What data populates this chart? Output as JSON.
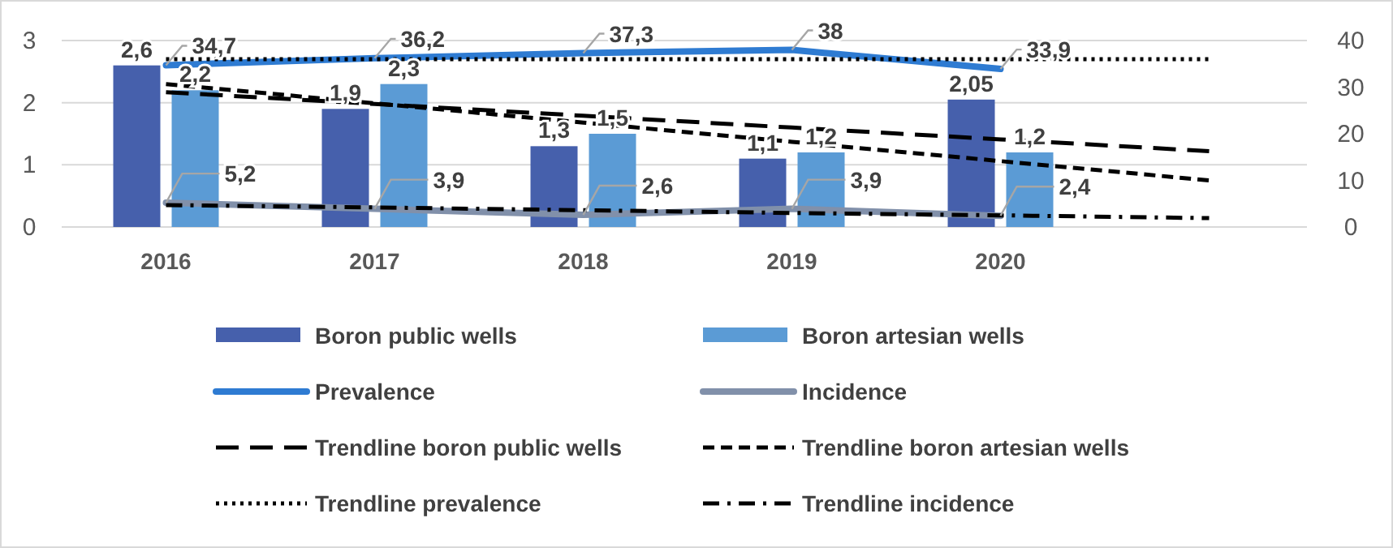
{
  "chart_data": {
    "type": "bar",
    "categories": [
      "2016",
      "2017",
      "2018",
      "2019",
      "2020",
      null
    ],
    "ylim": [
      0,
      3
    ],
    "yticks": [
      0,
      1,
      2,
      3
    ],
    "y2lim": [
      0,
      40
    ],
    "y2ticks": [
      0,
      10,
      20,
      30,
      40
    ],
    "grid": "y",
    "legend": "bottom",
    "series": [
      {
        "name": "Boron public wells",
        "color": "#4660ac",
        "values": [
          2.6,
          1.9,
          1.3,
          1.1,
          2.05,
          null
        ],
        "value_labels": [
          "2,6",
          "1,9",
          "1,3",
          "1,1",
          "2,05",
          null
        ]
      },
      {
        "name": "Boron artesian wells",
        "color": "#5b9bd5",
        "values": [
          2.2,
          2.3,
          1.5,
          1.2,
          1.2,
          null
        ],
        "value_labels": [
          "2,2",
          "2,3",
          "1,5",
          "1,2",
          "1,2",
          null
        ]
      },
      {
        "name": "Prevalence",
        "type": "line",
        "axis": "y2",
        "color": "#2e7bd2",
        "values": [
          34.7,
          36.2,
          37.3,
          38,
          33.9,
          null
        ],
        "value_labels": [
          "34,7",
          "36,2",
          "37,3",
          "38",
          "33,9",
          null
        ]
      },
      {
        "name": "Incidence",
        "type": "line",
        "axis": "y2",
        "color": "#8190aa",
        "values": [
          5.2,
          3.9,
          2.6,
          3.9,
          2.4,
          null
        ],
        "value_labels": [
          "5,2",
          "3,9",
          "2,6",
          "3,9",
          "2,4",
          null
        ]
      },
      {
        "name": "Trendline boron public wells",
        "type": "line",
        "color": "#000000",
        "line_style": "longdash",
        "values": [
          2.17,
          1.98,
          1.79,
          1.6,
          1.41,
          1.22
        ]
      },
      {
        "name": "Trendline boron artesian wells",
        "type": "line",
        "color": "#000000",
        "line_style": "dashed",
        "values": [
          2.3,
          1.99,
          1.68,
          1.37,
          1.06,
          0.75
        ]
      },
      {
        "name": "Trendline prevalence",
        "type": "line",
        "axis": "y2",
        "color": "#000000",
        "line_style": "dotted",
        "values": [
          36,
          36,
          36,
          36,
          36,
          36
        ]
      },
      {
        "name": "Trendline incidence",
        "type": "line",
        "axis": "y2",
        "color": "#000000",
        "line_style": "dashdot",
        "values": [
          4.7,
          4.2,
          3.6,
          3,
          2.5,
          1.9
        ]
      }
    ]
  }
}
